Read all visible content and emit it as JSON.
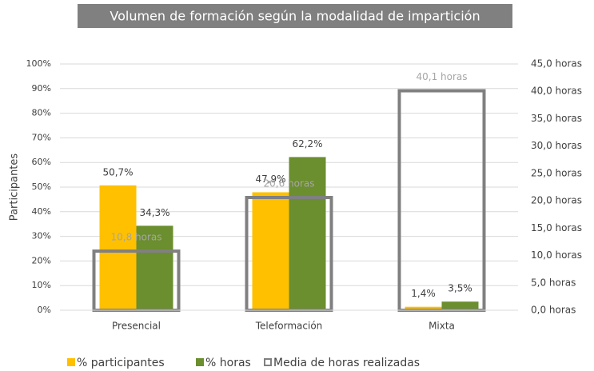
{
  "chart_data": {
    "type": "bar",
    "title": "Volumen de formación según la modalidad de impartición",
    "ylabel": "Participantes",
    "categories": [
      "Presencial",
      "Teleformación",
      "Mixta"
    ],
    "series": [
      {
        "name": "% participantes",
        "color": "#ffc000",
        "values": [
          50.7,
          47.9,
          1.4
        ],
        "value_labels": [
          "50,7%",
          "47,9%",
          "1,4%"
        ]
      },
      {
        "name": "% horas",
        "color": "#6b8e2e",
        "values": [
          34.3,
          62.2,
          3.5
        ],
        "value_labels": [
          "34,3%",
          "62,2%",
          "3,5%"
        ]
      },
      {
        "name": "Media de horas realizadas",
        "color": "#808080",
        "axis": "y2",
        "values": [
          10.8,
          20.6,
          40.1
        ],
        "value_labels": [
          "10,8 horas",
          "20,6 horas",
          "40,1 horas"
        ]
      }
    ],
    "ylim": [
      0,
      100
    ],
    "yticks": [
      {
        "value": 0,
        "label": "0%"
      },
      {
        "value": 10,
        "label": "10%"
      },
      {
        "value": 20,
        "label": "20%"
      },
      {
        "value": 30,
        "label": "30%"
      },
      {
        "value": 40,
        "label": "40%"
      },
      {
        "value": 50,
        "label": "50%"
      },
      {
        "value": 60,
        "label": "60%"
      },
      {
        "value": 70,
        "label": "70%"
      },
      {
        "value": 80,
        "label": "80%"
      },
      {
        "value": 90,
        "label": "90%"
      },
      {
        "value": 100,
        "label": "100%"
      }
    ],
    "y2lim": [
      0,
      45
    ],
    "y2ticks": [
      {
        "value": 0,
        "label": "0,0 horas"
      },
      {
        "value": 5,
        "label": "5,0 horas"
      },
      {
        "value": 10,
        "label": "10,0 horas"
      },
      {
        "value": 15,
        "label": "15,0 horas"
      },
      {
        "value": 20,
        "label": "20,0 horas"
      },
      {
        "value": 25,
        "label": "25,0 horas"
      },
      {
        "value": 30,
        "label": "30,0 horas"
      },
      {
        "value": 35,
        "label": "35,0 horas"
      },
      {
        "value": 40,
        "label": "40,0 horas"
      },
      {
        "value": 45,
        "label": "45,0 horas"
      }
    ],
    "grid": true,
    "legend": "bottom"
  }
}
